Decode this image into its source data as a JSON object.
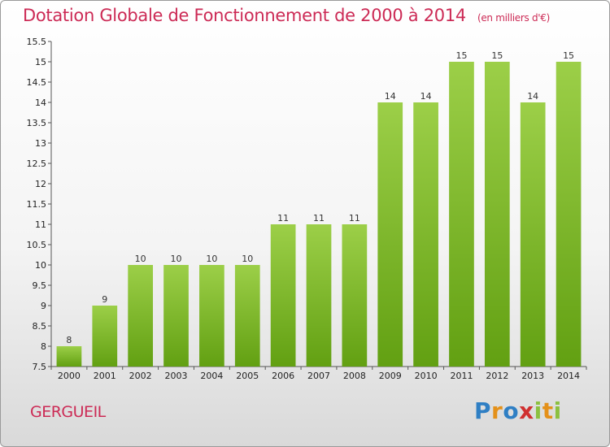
{
  "chart_data": {
    "type": "bar",
    "title": "Dotation Globale de Fonctionnement de 2000 à 2014",
    "unit_note": "(en milliers d'€)",
    "categories": [
      "2000",
      "2001",
      "2002",
      "2003",
      "2004",
      "2005",
      "2006",
      "2007",
      "2008",
      "2009",
      "2010",
      "2011",
      "2012",
      "2013",
      "2014"
    ],
    "values": [
      8,
      9,
      10,
      10,
      10,
      10,
      11,
      11,
      11,
      14,
      14,
      15,
      15,
      14,
      15
    ],
    "value_labels": [
      "8",
      "9",
      "10",
      "10",
      "10",
      "10",
      "11",
      "11",
      "11",
      "14",
      "14",
      "15",
      "15",
      "14",
      "15"
    ],
    "ylim": [
      7.5,
      15.5
    ],
    "yticks": [
      7.5,
      8,
      8.5,
      9,
      9.5,
      10,
      10.5,
      11,
      11.5,
      12,
      12.5,
      13,
      13.5,
      14,
      14.5,
      15,
      15.5
    ],
    "ytick_labels": [
      "7.5",
      "8",
      "8.5",
      "9",
      "9.5",
      "10",
      "10.5",
      "11",
      "11.5",
      "12",
      "12.5",
      "13",
      "13.5",
      "14",
      "14.5",
      "15",
      "15.5"
    ],
    "grid": false,
    "xlabel": "",
    "ylabel": "",
    "colors": {
      "bar_light": "#9ccf48",
      "bar_dark": "#62a012",
      "title": "#cc2a55"
    }
  },
  "footer": {
    "commune": "GERGUEIL",
    "logo": {
      "text": "Proxiti",
      "letters": [
        {
          "char": "P",
          "color": "#2f7fc4"
        },
        {
          "char": "r",
          "color": "#e4911a"
        },
        {
          "char": "o",
          "color": "#2f7fc4"
        },
        {
          "char": "x",
          "color": "#d03030"
        },
        {
          "char": "i",
          "color": "#8cc040"
        },
        {
          "char": "t",
          "color": "#e4911a"
        },
        {
          "char": "i",
          "color": "#8cc040"
        }
      ]
    }
  }
}
